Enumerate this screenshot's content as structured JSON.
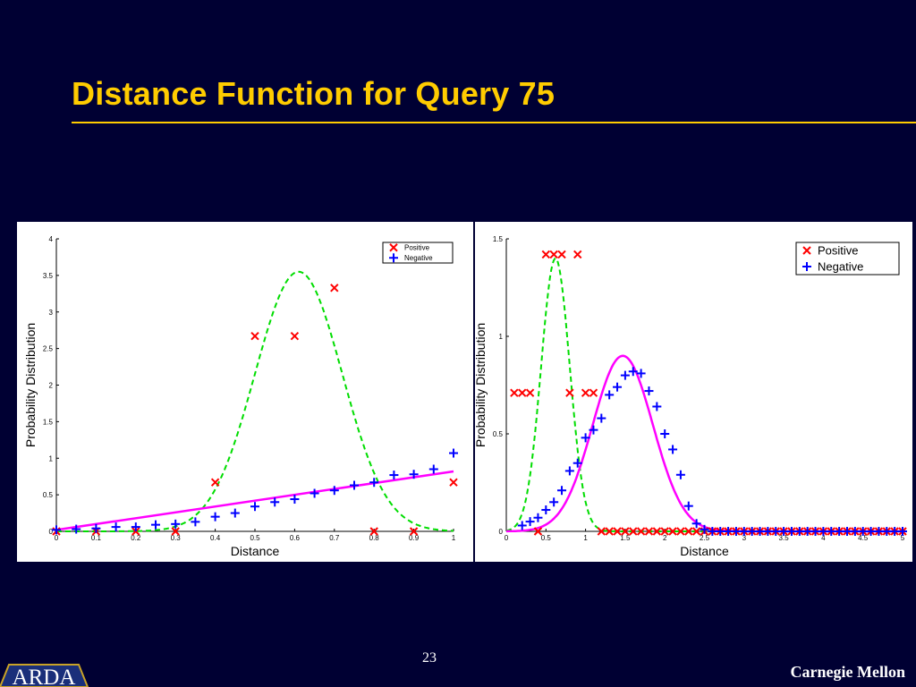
{
  "slide": {
    "title": "Distance Function for Query 75",
    "page_number": "23",
    "org_name": "Carnegie Mellon",
    "logo_text": "ARDA",
    "colors": {
      "background": "#000033",
      "title": "#FFCC00",
      "positive": "#ff0000",
      "negative": "#0000ff",
      "positive_fit": "#00dd00",
      "negative_fit": "#ff00ff"
    }
  },
  "chart_data": [
    {
      "type": "scatter",
      "xlabel": "Distance",
      "ylabel": "Probability Distribution",
      "xlim": [
        0,
        1
      ],
      "ylim": [
        0,
        4
      ],
      "xticks": [
        "0",
        "0.1",
        "0.2",
        "0.3",
        "0.4",
        "0.5",
        "0.6",
        "0.7",
        "0.8",
        "0.9",
        "1"
      ],
      "yticks": [
        "0",
        "0.5",
        "1",
        "1.5",
        "2",
        "2.5",
        "3",
        "3.5",
        "4"
      ],
      "legend_position": "top-right",
      "grid": false,
      "series": [
        {
          "name": "Positive",
          "marker": "x",
          "color": "#ff0000",
          "points": [
            [
              0,
              0
            ],
            [
              0.1,
              0
            ],
            [
              0.2,
              0
            ],
            [
              0.3,
              0
            ],
            [
              0.4,
              0.67
            ],
            [
              0.5,
              2.67
            ],
            [
              0.6,
              2.67
            ],
            [
              0.7,
              3.33
            ],
            [
              0.8,
              0
            ],
            [
              0.9,
              0
            ],
            [
              1.0,
              0.67
            ]
          ]
        },
        {
          "name": "Negative",
          "marker": "+",
          "color": "#0000ff",
          "points": [
            [
              0,
              0.02
            ],
            [
              0.05,
              0.03
            ],
            [
              0.1,
              0.04
            ],
            [
              0.15,
              0.06
            ],
            [
              0.2,
              0.06
            ],
            [
              0.25,
              0.09
            ],
            [
              0.3,
              0.1
            ],
            [
              0.35,
              0.13
            ],
            [
              0.4,
              0.2
            ],
            [
              0.45,
              0.25
            ],
            [
              0.5,
              0.34
            ],
            [
              0.55,
              0.4
            ],
            [
              0.6,
              0.44
            ],
            [
              0.65,
              0.52
            ],
            [
              0.7,
              0.56
            ],
            [
              0.75,
              0.63
            ],
            [
              0.8,
              0.67
            ],
            [
              0.85,
              0.77
            ],
            [
              0.9,
              0.78
            ],
            [
              0.95,
              0.85
            ],
            [
              1.0,
              1.07
            ]
          ]
        }
      ],
      "fits": [
        {
          "kind": "gaussian",
          "line": "dashed",
          "color": "#00dd00",
          "peak": 3.55,
          "mean": 0.61,
          "sd": 0.11
        },
        {
          "kind": "linear",
          "line": "solid",
          "color": "#ff00ff",
          "x": [
            0,
            1
          ],
          "y": [
            0.02,
            0.82
          ]
        }
      ]
    },
    {
      "type": "scatter",
      "xlabel": "Distance",
      "ylabel": "Probability Distribution",
      "xlim": [
        0,
        5
      ],
      "ylim": [
        0,
        1.5
      ],
      "xticks": [
        "0",
        "0.5",
        "1",
        "1.5",
        "2",
        "2.5",
        "3",
        "3.5",
        "4",
        "4.5",
        "5"
      ],
      "yticks": [
        "0",
        "0.5",
        "1",
        "1.5"
      ],
      "legend_position": "top-right",
      "grid": false,
      "series": [
        {
          "name": "Positive",
          "marker": "x",
          "color": "#ff0000",
          "points": [
            [
              0.1,
              0.71
            ],
            [
              0.2,
              0.71
            ],
            [
              0.3,
              0.71
            ],
            [
              0.4,
              0
            ],
            [
              0.5,
              1.42
            ],
            [
              0.6,
              1.42
            ],
            [
              0.7,
              1.42
            ],
            [
              0.8,
              0.71
            ],
            [
              0.9,
              1.42
            ],
            [
              1.0,
              0.71
            ],
            [
              1.1,
              0.71
            ],
            [
              1.2,
              0
            ],
            [
              1.3,
              0
            ],
            [
              1.4,
              0
            ],
            [
              1.5,
              0
            ],
            [
              1.6,
              0
            ],
            [
              1.7,
              0
            ],
            [
              1.8,
              0
            ],
            [
              1.9,
              0
            ],
            [
              2.0,
              0
            ],
            [
              2.1,
              0
            ],
            [
              2.2,
              0
            ],
            [
              2.3,
              0
            ],
            [
              2.4,
              0
            ],
            [
              2.5,
              0
            ],
            [
              2.6,
              0
            ],
            [
              2.7,
              0
            ],
            [
              2.8,
              0
            ],
            [
              2.9,
              0
            ],
            [
              3.0,
              0
            ],
            [
              3.1,
              0
            ],
            [
              3.2,
              0
            ],
            [
              3.3,
              0
            ],
            [
              3.4,
              0
            ],
            [
              3.5,
              0
            ],
            [
              3.6,
              0
            ],
            [
              3.7,
              0
            ],
            [
              3.8,
              0
            ],
            [
              3.9,
              0
            ],
            [
              4.0,
              0
            ],
            [
              4.1,
              0
            ],
            [
              4.2,
              0
            ],
            [
              4.3,
              0
            ],
            [
              4.4,
              0
            ],
            [
              4.5,
              0
            ],
            [
              4.6,
              0
            ],
            [
              4.7,
              0
            ],
            [
              4.8,
              0
            ],
            [
              4.9,
              0
            ],
            [
              5.0,
              0
            ]
          ]
        },
        {
          "name": "Negative",
          "marker": "+",
          "color": "#0000ff",
          "points": [
            [
              0.2,
              0.03
            ],
            [
              0.3,
              0.05
            ],
            [
              0.4,
              0.07
            ],
            [
              0.5,
              0.11
            ],
            [
              0.6,
              0.15
            ],
            [
              0.7,
              0.21
            ],
            [
              0.8,
              0.31
            ],
            [
              0.9,
              0.35
            ],
            [
              1.0,
              0.48
            ],
            [
              1.1,
              0.52
            ],
            [
              1.2,
              0.58
            ],
            [
              1.3,
              0.7
            ],
            [
              1.4,
              0.74
            ],
            [
              1.5,
              0.8
            ],
            [
              1.6,
              0.82
            ],
            [
              1.7,
              0.81
            ],
            [
              1.8,
              0.72
            ],
            [
              1.9,
              0.64
            ],
            [
              2.0,
              0.5
            ],
            [
              2.1,
              0.42
            ],
            [
              2.2,
              0.29
            ],
            [
              2.3,
              0.13
            ],
            [
              2.4,
              0.04
            ],
            [
              2.5,
              0.01
            ],
            [
              2.6,
              0
            ],
            [
              2.7,
              0
            ],
            [
              2.8,
              0
            ],
            [
              2.9,
              0
            ],
            [
              3.0,
              0
            ],
            [
              3.1,
              0
            ],
            [
              3.2,
              0
            ],
            [
              3.3,
              0
            ],
            [
              3.4,
              0
            ],
            [
              3.5,
              0
            ],
            [
              3.6,
              0
            ],
            [
              3.7,
              0
            ],
            [
              3.8,
              0
            ],
            [
              3.9,
              0
            ],
            [
              4.0,
              0
            ],
            [
              4.1,
              0
            ],
            [
              4.2,
              0
            ],
            [
              4.3,
              0
            ],
            [
              4.4,
              0
            ],
            [
              4.5,
              0
            ],
            [
              4.6,
              0
            ],
            [
              4.7,
              0
            ],
            [
              4.8,
              0
            ],
            [
              4.9,
              0
            ],
            [
              5.0,
              0
            ]
          ]
        }
      ],
      "fits": [
        {
          "kind": "gaussian",
          "line": "dashed",
          "color": "#00dd00",
          "peak": 1.4,
          "mean": 0.62,
          "sd": 0.18
        },
        {
          "kind": "gaussian",
          "line": "solid",
          "color": "#ff00ff",
          "peak": 0.9,
          "mean": 1.47,
          "sd": 0.38
        }
      ]
    }
  ]
}
